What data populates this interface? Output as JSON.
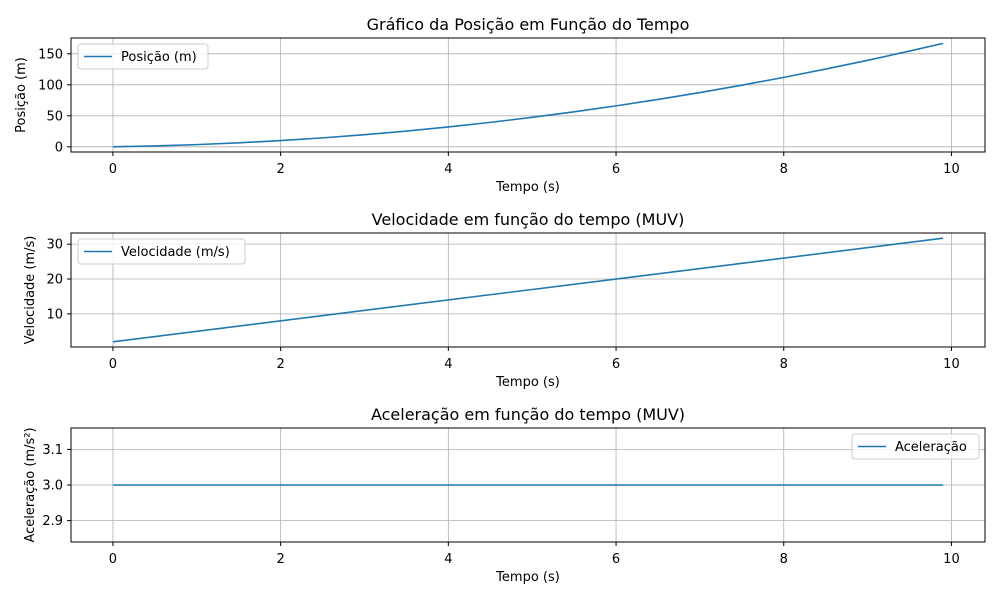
{
  "chart_data": [
    {
      "type": "line",
      "title": "Gráfico da Posição em Função do Tempo",
      "xlabel": "Tempo (s)",
      "ylabel": "Posição (m)",
      "xlim": [
        -0.5,
        10.4
      ],
      "ylim": [
        -8.4,
        175.5
      ],
      "xticks": [
        0,
        2,
        4,
        6,
        8,
        10
      ],
      "yticks": [
        0,
        50,
        100,
        150
      ],
      "grid": true,
      "legend": "upper left",
      "color": "#1f77b4",
      "series": [
        {
          "name": "Posição (m)",
          "x": [
            0,
            0.5,
            1,
            1.5,
            2,
            2.5,
            3,
            3.5,
            4,
            4.5,
            5,
            5.5,
            6,
            6.5,
            7,
            7.5,
            8,
            8.5,
            9,
            9.5,
            9.9
          ],
          "y": [
            0,
            1.4,
            3.5,
            6.4,
            10,
            14.4,
            19.5,
            25.4,
            32,
            39.4,
            47.5,
            56.4,
            66,
            76.4,
            87.5,
            99.4,
            112,
            125.4,
            139.5,
            154.4,
            166.8
          ]
        }
      ]
    },
    {
      "type": "line",
      "title": "Velocidade em função do tempo (MUV)",
      "xlabel": "Tempo (s)",
      "ylabel": "Velocidade (m/s)",
      "xlim": [
        -0.5,
        10.4
      ],
      "ylim": [
        0.5,
        33.2
      ],
      "xticks": [
        0,
        2,
        4,
        6,
        8,
        10
      ],
      "yticks": [
        10,
        20,
        30
      ],
      "grid": true,
      "legend": "upper left",
      "color": "#1f77b4",
      "series": [
        {
          "name": "Velocidade (m/s)",
          "x": [
            0,
            9.9
          ],
          "y": [
            2,
            31.7
          ]
        }
      ]
    },
    {
      "type": "line",
      "title": "Aceleração em função do tempo (MUV)",
      "xlabel": "Tempo (s)",
      "ylabel": "Aceleração (m/s²)",
      "xlim": [
        -0.5,
        10.4
      ],
      "ylim": [
        2.84,
        3.16
      ],
      "xticks": [
        0,
        2,
        4,
        6,
        8,
        10
      ],
      "yticks": [
        2.9,
        3.0,
        3.1
      ],
      "ytick_decimals": 1,
      "grid": true,
      "legend": "upper right",
      "color": "#1f77b4",
      "series": [
        {
          "name": "Aceleração",
          "x": [
            0,
            9.9
          ],
          "y": [
            3.0,
            3.0
          ]
        }
      ]
    }
  ]
}
